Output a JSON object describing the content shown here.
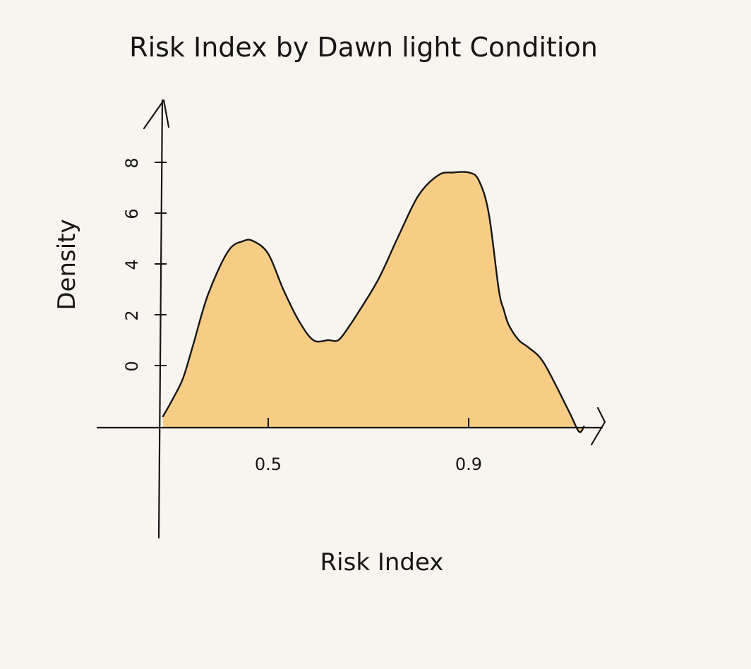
{
  "chart_data": {
    "type": "area",
    "title": "Risk Index by Dawn light Condition",
    "xlabel": "Risk Index",
    "ylabel": "Density",
    "x_ticks": [
      {
        "value": 0.5,
        "label": "0.5"
      },
      {
        "value": 0.9,
        "label": "0.9"
      }
    ],
    "y_ticks": [
      {
        "value": 0,
        "label": "0"
      },
      {
        "value": 2,
        "label": "2"
      },
      {
        "value": 4,
        "label": "4"
      },
      {
        "value": 6,
        "label": "6"
      },
      {
        "value": 8,
        "label": "8"
      }
    ],
    "x": [
      0.29,
      0.31,
      0.33,
      0.35,
      0.38,
      0.42,
      0.45,
      0.47,
      0.5,
      0.53,
      0.56,
      0.59,
      0.62,
      0.64,
      0.66,
      0.68,
      0.72,
      0.76,
      0.8,
      0.84,
      0.87,
      0.9,
      0.92,
      0.94,
      0.96,
      0.97,
      0.98,
      1.0,
      1.02,
      1.05,
      1.1,
      1.12,
      1.13
    ],
    "y": [
      -2.0,
      -1.3,
      -0.5,
      0.8,
      2.8,
      4.5,
      4.9,
      4.9,
      4.4,
      3.0,
      1.8,
      1.0,
      1.0,
      1.0,
      1.5,
      2.1,
      3.4,
      5.1,
      6.7,
      7.5,
      7.6,
      7.6,
      7.3,
      6.0,
      3.0,
      2.2,
      1.6,
      1.0,
      0.7,
      0.1,
      -1.8,
      -2.6,
      -2.4
    ],
    "fill_color": "#f7cd86",
    "line_color": "#161616",
    "grid": false,
    "background": "#f8f5f0"
  }
}
